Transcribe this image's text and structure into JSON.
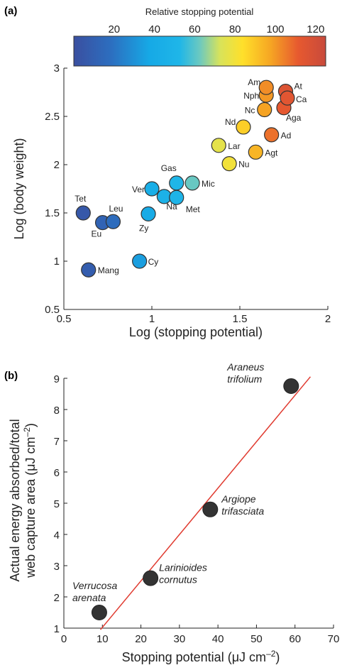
{
  "chart_data": [
    {
      "type": "scatter",
      "panel_label": "(a)",
      "xlabel": "Log (stopping potential)",
      "ylabel": "Log (body weight)",
      "xlim": [
        0.5,
        2
      ],
      "ylim": [
        0.5,
        3
      ],
      "x_ticks": [
        "0.5",
        "1",
        "1.5",
        "2"
      ],
      "y_ticks": [
        "0.5",
        "1",
        "1.5",
        "2",
        "2.5",
        "3"
      ],
      "colorbar": {
        "title": "Relative stopping potential",
        "range": [
          0,
          125
        ],
        "ticks": [
          "20",
          "40",
          "60",
          "80",
          "100",
          "120"
        ]
      },
      "points": [
        {
          "label": "Tet",
          "x": 0.61,
          "y": 1.5,
          "c": 5
        },
        {
          "label": "Eu",
          "x": 0.72,
          "y": 1.4,
          "c": 12
        },
        {
          "label": "Leu",
          "x": 0.78,
          "y": 1.41,
          "c": 17
        },
        {
          "label": "Mang",
          "x": 0.64,
          "y": 0.91,
          "c": 8
        },
        {
          "label": "Cy",
          "x": 0.93,
          "y": 1.0,
          "c": 34
        },
        {
          "label": "Zy",
          "x": 0.98,
          "y": 1.49,
          "c": 40
        },
        {
          "label": "Ver",
          "x": 1.0,
          "y": 1.75,
          "c": 43
        },
        {
          "label": "Na",
          "x": 1.07,
          "y": 1.67,
          "c": 47
        },
        {
          "label": "Met",
          "x": 1.14,
          "y": 1.66,
          "c": 50
        },
        {
          "label": "Gas",
          "x": 1.14,
          "y": 1.81,
          "c": 52
        },
        {
          "label": "Mic",
          "x": 1.23,
          "y": 1.81,
          "c": 62
        },
        {
          "label": "Lar",
          "x": 1.38,
          "y": 2.2,
          "c": 76
        },
        {
          "label": "Nu",
          "x": 1.44,
          "y": 2.01,
          "c": 80
        },
        {
          "label": "Nd",
          "x": 1.52,
          "y": 2.39,
          "c": 88
        },
        {
          "label": "Agt",
          "x": 1.59,
          "y": 2.13,
          "c": 94
        },
        {
          "label": "Nc",
          "x": 1.64,
          "y": 2.57,
          "c": 98
        },
        {
          "label": "Nph",
          "x": 1.65,
          "y": 2.72,
          "c": 100
        },
        {
          "label": "Am",
          "x": 1.65,
          "y": 2.8,
          "c": 102
        },
        {
          "label": "Ad",
          "x": 1.68,
          "y": 2.31,
          "c": 107
        },
        {
          "label": "Aga",
          "x": 1.75,
          "y": 2.59,
          "c": 112
        },
        {
          "label": "At",
          "x": 1.76,
          "y": 2.76,
          "c": 116
        },
        {
          "label": "Ca",
          "x": 1.77,
          "y": 2.69,
          "c": 114
        }
      ]
    },
    {
      "type": "scatter",
      "panel_label": "(b)",
      "xlabel": "Stopping potential (μJ cm",
      "xlabel_sup": "–2",
      "xlabel_end": ")",
      "ylabel_line1": "Actual energy absorbed/total",
      "ylabel_line2": "web capture area (μJ cm",
      "ylabel_sup": "–2",
      "ylabel_end": ")",
      "xlim": [
        0,
        70
      ],
      "ylim": [
        1,
        9
      ],
      "x_ticks": [
        "0",
        "10",
        "20",
        "30",
        "40",
        "50",
        "60",
        "70"
      ],
      "y_ticks": [
        "1",
        "2",
        "3",
        "4",
        "5",
        "6",
        "7",
        "8",
        "9"
      ],
      "points": [
        {
          "line1": "Verrucosa",
          "line2": "arenata",
          "x": 9.2,
          "y": 1.5
        },
        {
          "line1": "Larinioides",
          "line2": "cornutus",
          "x": 22.5,
          "y": 2.6
        },
        {
          "line1": "Argiope",
          "line2": "trifasciata",
          "x": 38,
          "y": 4.8
        },
        {
          "line1": "Araneus",
          "line2": "trifolium",
          "x": 59,
          "y": 8.75
        }
      ],
      "fit_line": {
        "x": [
          9.5,
          64
        ],
        "y": [
          0.95,
          9.05
        ],
        "color": "#e03a2f"
      }
    }
  ]
}
